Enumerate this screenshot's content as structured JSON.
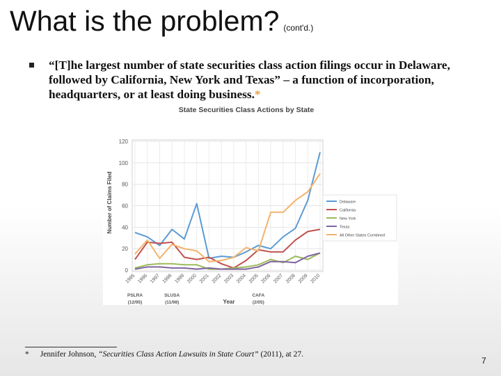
{
  "slide": {
    "title": "What is the problem?",
    "title_suffix": "(cont'd.)",
    "bullet": "“[T]he largest number of state securities class action filings occur in Delaware, followed by California, New York and Texas” – a function of incorporation, headquarters, or at least doing business.",
    "bullet_ref": "*",
    "footnote_marker": "*",
    "footnote_author": "Jennifer Johnson, ",
    "footnote_title": "“Securities Class Action Lawsuits in State Court”",
    "footnote_rest": " (2011), at 27.",
    "page_number": "7"
  },
  "chart_data": {
    "type": "line",
    "title": "State Securities Class Actions by State",
    "xlabel": "Year",
    "ylabel": "Number of Claims Filed",
    "ylim": [
      0,
      120
    ],
    "yticks": [
      0,
      20,
      40,
      60,
      80,
      100,
      120
    ],
    "x": [
      "1995",
      "1996",
      "1997",
      "1998",
      "1999",
      "2000",
      "2001",
      "2002",
      "2003",
      "2004",
      "2005",
      "2006",
      "2007",
      "2008",
      "2009",
      "2010"
    ],
    "annotations": [
      {
        "year": "1995",
        "lines": [
          "PSLRA",
          "(12/95)"
        ]
      },
      {
        "year": "1998",
        "lines": [
          "SLUSA",
          "(11/98)"
        ]
      },
      {
        "year": "2005",
        "lines": [
          "CAFA",
          "(2/05)"
        ]
      }
    ],
    "legend_position": "right",
    "series": [
      {
        "name": "Delaware",
        "color": "#5b9bd5",
        "values": [
          35,
          31,
          23,
          38,
          29,
          62,
          11,
          13,
          12,
          17,
          23,
          20,
          31,
          39,
          65,
          110
        ]
      },
      {
        "name": "California",
        "color": "#c0504d",
        "values": [
          10,
          26,
          25,
          26,
          12,
          10,
          12,
          6,
          2,
          9,
          19,
          17,
          17,
          28,
          36,
          38
        ]
      },
      {
        "name": "New York",
        "color": "#9bbb59",
        "values": [
          2,
          5,
          6,
          6,
          5,
          5,
          1,
          1,
          2,
          3,
          5,
          10,
          7,
          13,
          10,
          16
        ]
      },
      {
        "name": "Texas",
        "color": "#8064a2",
        "values": [
          1,
          3,
          3,
          2,
          2,
          1,
          2,
          1,
          1,
          1,
          3,
          8,
          8,
          7,
          13,
          16
        ]
      },
      {
        "name": "All Other States Combined",
        "color": "#f4b26b",
        "values": [
          15,
          28,
          11,
          24,
          20,
          18,
          8,
          9,
          12,
          21,
          18,
          54,
          54,
          65,
          73,
          90
        ]
      }
    ]
  }
}
